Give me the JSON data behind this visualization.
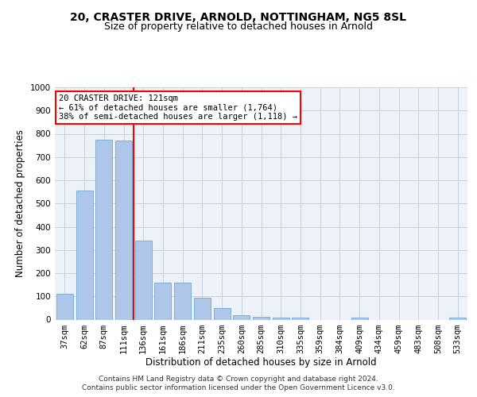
{
  "title1": "20, CRASTER DRIVE, ARNOLD, NOTTINGHAM, NG5 8SL",
  "title2": "Size of property relative to detached houses in Arnold",
  "xlabel": "Distribution of detached houses by size in Arnold",
  "ylabel": "Number of detached properties",
  "categories": [
    "37sqm",
    "62sqm",
    "87sqm",
    "111sqm",
    "136sqm",
    "161sqm",
    "186sqm",
    "211sqm",
    "235sqm",
    "260sqm",
    "285sqm",
    "310sqm",
    "335sqm",
    "359sqm",
    "384sqm",
    "409sqm",
    "434sqm",
    "459sqm",
    "483sqm",
    "508sqm",
    "533sqm"
  ],
  "values": [
    110,
    555,
    775,
    770,
    340,
    160,
    160,
    95,
    50,
    20,
    13,
    10,
    10,
    0,
    0,
    7,
    0,
    0,
    0,
    0,
    10
  ],
  "bar_color": "#aec6e8",
  "bar_edgecolor": "#6fa8d8",
  "vline_color": "red",
  "vline_index": 3,
  "annotation_text": "20 CRASTER DRIVE: 121sqm\n← 61% of detached houses are smaller (1,764)\n38% of semi-detached houses are larger (1,118) →",
  "annotation_box_color": "white",
  "annotation_box_edgecolor": "red",
  "ylim": [
    0,
    1000
  ],
  "yticks": [
    0,
    100,
    200,
    300,
    400,
    500,
    600,
    700,
    800,
    900,
    1000
  ],
  "grid_color": "#c8d0dc",
  "bg_color": "#edf1f8",
  "footer1": "Contains HM Land Registry data © Crown copyright and database right 2024.",
  "footer2": "Contains public sector information licensed under the Open Government Licence v3.0.",
  "title1_fontsize": 10,
  "title2_fontsize": 9,
  "xlabel_fontsize": 8.5,
  "ylabel_fontsize": 8.5,
  "annot_fontsize": 7.5,
  "tick_fontsize": 7.5
}
